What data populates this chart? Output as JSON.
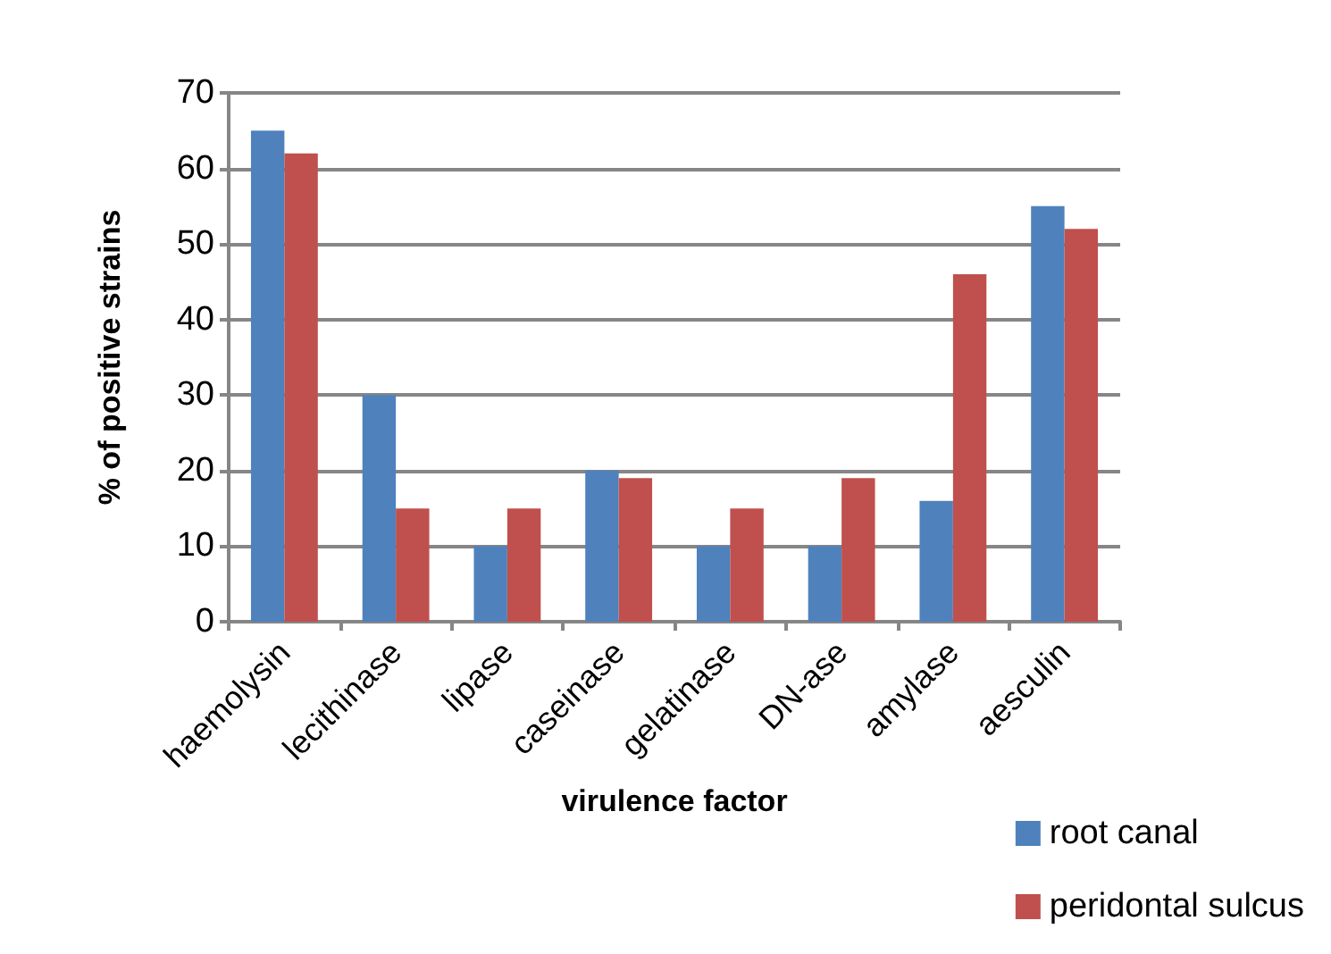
{
  "chart_data": {
    "type": "bar",
    "xlabel": "virulence factor",
    "ylabel": "% of positive strains",
    "categories": [
      "haemolysin",
      "lecithinase",
      "lipase",
      "caseinase",
      "gelatinase",
      "DN-ase",
      "amylase",
      "aesculin"
    ],
    "series": [
      {
        "name": "root canal",
        "color": "#4f81bd",
        "values": [
          65,
          30,
          10,
          20,
          10,
          10,
          16,
          55
        ]
      },
      {
        "name": "peridontal sulcus",
        "color": "#c0504d",
        "values": [
          62,
          15,
          15,
          19,
          15,
          19,
          46,
          52
        ]
      }
    ],
    "ylim": [
      0,
      70
    ],
    "yticks": [
      0,
      10,
      20,
      30,
      40,
      50,
      60,
      70
    ],
    "grid": "y",
    "legend": "bottom right"
  }
}
